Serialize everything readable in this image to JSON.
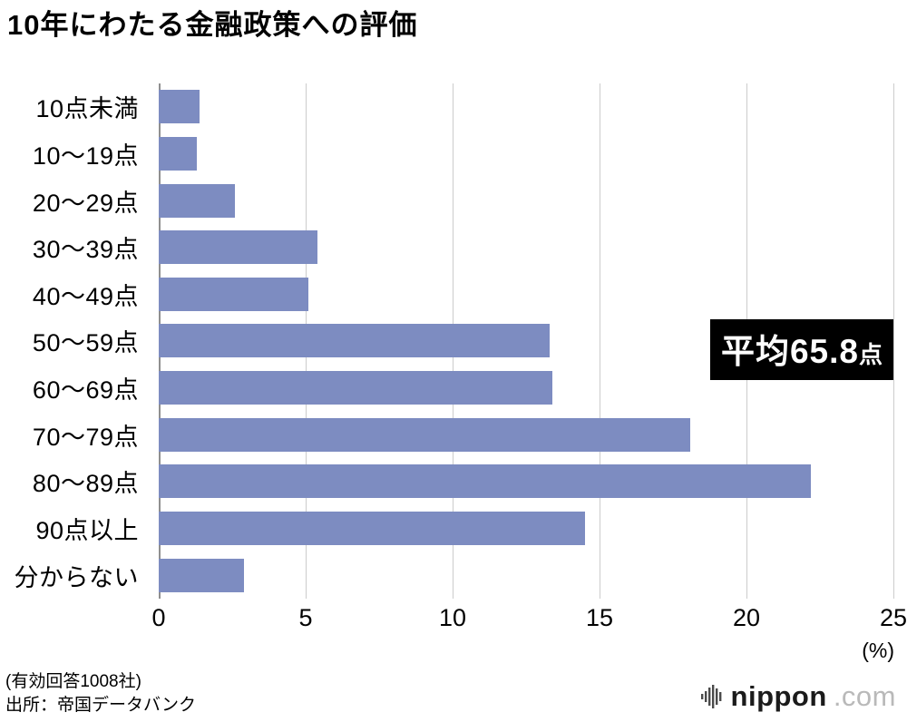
{
  "title": "10年にわたる金融政策への評価",
  "chart_data": {
    "type": "bar",
    "orientation": "horizontal",
    "categories": [
      "10点未満",
      "10〜19点",
      "20〜29点",
      "30〜39点",
      "40〜49点",
      "50〜59点",
      "60〜69点",
      "70〜79点",
      "80〜89点",
      "90点以上",
      "分からない"
    ],
    "values": [
      1.4,
      1.3,
      2.6,
      5.4,
      5.1,
      13.3,
      13.4,
      18.1,
      22.2,
      14.5,
      2.9
    ],
    "xlim": [
      0,
      25
    ],
    "x_ticks": [
      0,
      5,
      10,
      15,
      20,
      25
    ],
    "xlabel": "(%)",
    "grid": true,
    "legend": "none",
    "bar_color": "#7D8CC1",
    "annotation": {
      "main": "平均65.8",
      "suffix": "点"
    }
  },
  "footer": {
    "note1": "(有効回答1008社)",
    "note2": "出所：帝国データバンク"
  },
  "logo": {
    "name": "nippon",
    "tld": ".com"
  }
}
